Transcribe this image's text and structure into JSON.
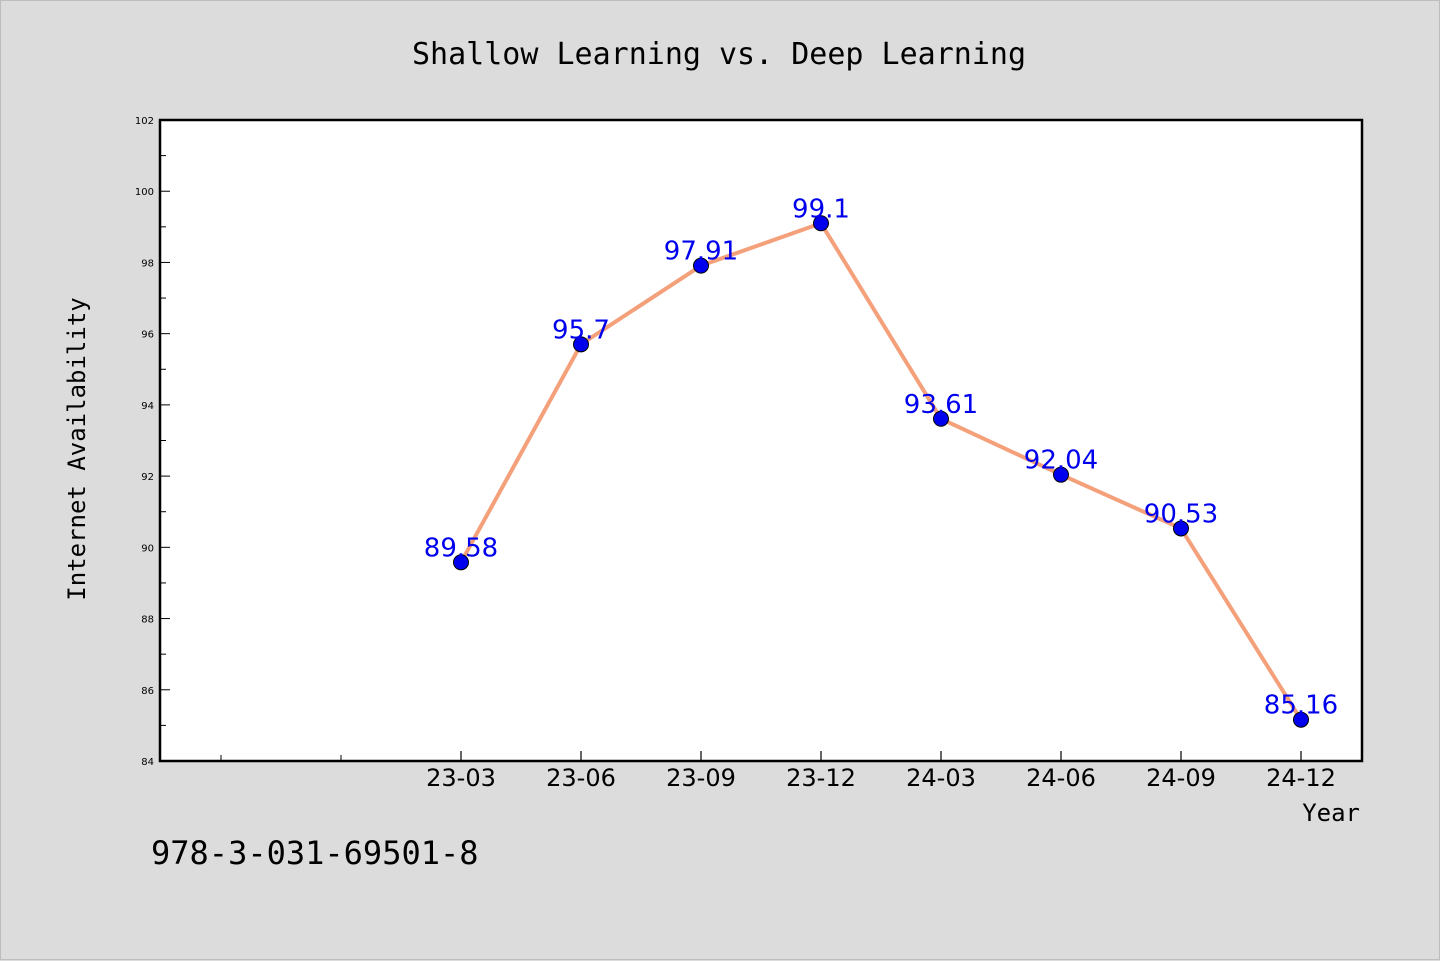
{
  "chart_data": {
    "type": "line",
    "title": "Shallow Learning vs. Deep Learning",
    "xlabel": "Year",
    "ylabel": "Internet Availability",
    "categories": [
      "23-03",
      "23-06",
      "23-09",
      "23-12",
      "24-03",
      "24-06",
      "24-09",
      "24-12"
    ],
    "series": [
      {
        "values": [
          89.58,
          95.7,
          97.91,
          99.1,
          93.61,
          92.04,
          90.53,
          85.16
        ]
      }
    ],
    "data_labels": [
      "89.58",
      "95.7",
      "97.91",
      "99.1",
      "93.61",
      "92.04",
      "90.53",
      "85.16"
    ],
    "ylim": [
      84,
      102
    ],
    "yticks": [
      84,
      86,
      88,
      90,
      92,
      94,
      96,
      98,
      100,
      102
    ],
    "grid": false,
    "legend": "none",
    "colors": {
      "line": "#f4a07a",
      "marker": "#0000ee",
      "label": "#0000ee"
    }
  },
  "footer_code": "978-3-031-69501-8"
}
